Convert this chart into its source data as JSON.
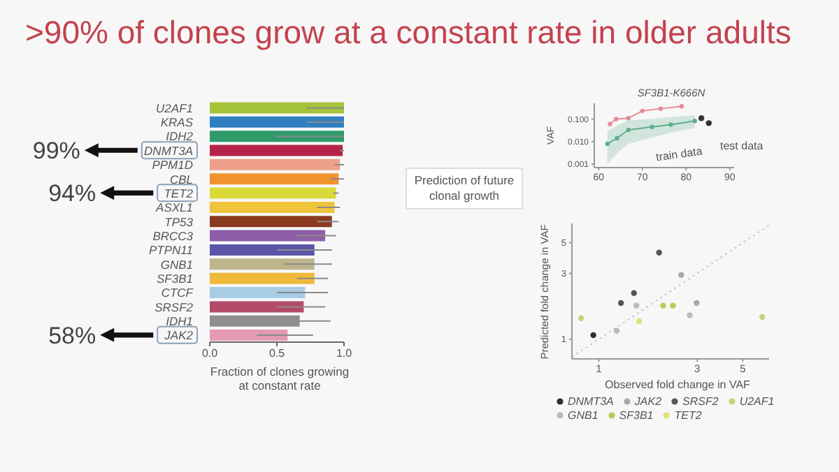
{
  "chart_data": [
    {
      "type": "bar",
      "orientation": "horizontal",
      "title": ">90% of clones grow at a constant rate in older adults",
      "xlabel": "Fraction of clones growing at constant rate",
      "categories": [
        "U2AF1",
        "KRAS",
        "IDH2",
        "DNMT3A",
        "PPM1D",
        "CBL",
        "TET2",
        "ASXL1",
        "TP53",
        "BRCC3",
        "PTPN11",
        "GNB1",
        "SF3B1",
        "CTCF",
        "SRSF2",
        "IDH1",
        "JAK2"
      ],
      "values": [
        1.0,
        1.0,
        1.0,
        0.99,
        0.97,
        0.96,
        0.94,
        0.93,
        0.91,
        0.86,
        0.78,
        0.78,
        0.78,
        0.71,
        0.7,
        0.67,
        0.58
      ],
      "colors": [
        "#a5c43a",
        "#2f7fc1",
        "#2e9a6a",
        "#b5234a",
        "#eea08a",
        "#f0922e",
        "#d9d93a",
        "#f0c43a",
        "#8b3a1e",
        "#8e5ea8",
        "#5b55a8",
        "#bdb58c",
        "#efb93a",
        "#a8cbe6",
        "#b44a6a",
        "#8e8e8e",
        "#e49ab0"
      ],
      "errors": [
        [
          0.72,
          1.0
        ],
        [
          0.72,
          1.0
        ],
        [
          0.49,
          1.0
        ],
        [
          0.97,
          1.0
        ],
        [
          0.93,
          1.0
        ],
        [
          0.9,
          1.0
        ],
        [
          0.92,
          0.96
        ],
        [
          0.8,
          0.97
        ],
        [
          0.8,
          0.96
        ],
        [
          0.65,
          0.94
        ],
        [
          0.5,
          0.91
        ],
        [
          0.55,
          0.91
        ],
        [
          0.65,
          0.88
        ],
        [
          0.5,
          0.88
        ],
        [
          0.5,
          0.86
        ],
        [
          0.67,
          0.9
        ],
        [
          0.35,
          0.77
        ]
      ],
      "xlim": [
        0,
        1
      ],
      "xticks": [
        {
          "value": 0,
          "label": "0.0"
        },
        {
          "value": 0.5,
          "label": "0.5"
        },
        {
          "value": 1,
          "label": "1.0"
        }
      ],
      "annotations": [
        "99%",
        "94%",
        "58%"
      ]
    },
    {
      "type": "line",
      "title": "SF3B1-K666N",
      "ylabel": "VAF",
      "log": "y",
      "marker": "circle",
      "xlim": [
        59,
        91
      ],
      "xticks": [
        60,
        70,
        80,
        90
      ],
      "ylim": [
        0.0007,
        0.5
      ],
      "yticks": [
        {
          "value": 0.001,
          "label": "0.001"
        },
        {
          "value": 0.01,
          "label": "0.010"
        },
        {
          "value": 0.1,
          "label": "0.100"
        }
      ],
      "series": [
        {
          "color": "#e58a9a",
          "x": [
            62.6,
            64,
            66.8,
            70,
            74.2,
            79
          ],
          "values": [
            0.06,
            0.1,
            0.11,
            0.23,
            0.29,
            0.37
          ]
        },
        {
          "color": "#5fae8e",
          "x": [
            62,
            64.2,
            66.8,
            72.2,
            76.5,
            82
          ],
          "values": [
            0.008,
            0.014,
            0.033,
            0.045,
            0.057,
            0.082
          ],
          "lower": [
            0.001,
            0.003,
            0.008,
            0.015,
            0.025,
            0.04
          ],
          "upper": [
            0.03,
            0.05,
            0.09,
            0.1,
            0.12,
            0.15
          ]
        },
        {
          "type": "scatter",
          "color": "#333333",
          "x": [
            83.5,
            85.2
          ],
          "values": [
            0.11,
            0.066
          ]
        }
      ],
      "annotations": [
        "train data",
        "test data"
      ]
    },
    {
      "type": "scatter",
      "xlabel": "Observed fold change in VAF",
      "ylabel": "Predicted fold change in VAF",
      "log": "xy",
      "marker": "circle",
      "legend": "bottom",
      "xlim": [
        0.74,
        6.7
      ],
      "xticks": [
        1,
        3,
        5
      ],
      "ylim": [
        0.72,
        6.9
      ],
      "yticks": [
        1,
        3,
        5
      ],
      "series": [
        {
          "name": "DNMT3A",
          "color": "#3a2a2a",
          "x": [
            0.94
          ],
          "values": [
            1.07
          ]
        },
        {
          "name": "JAK2",
          "color": "#a9a9a9",
          "x": [
            2.51,
            2.98
          ],
          "values": [
            2.92,
            1.83
          ]
        },
        {
          "name": "SRSF2",
          "color": "#555555",
          "x": [
            1.28,
            1.48,
            1.96
          ],
          "values": [
            1.83,
            2.16,
            4.24
          ]
        },
        {
          "name": "U2AF1",
          "color": "#c8d27a",
          "x": [
            0.82,
            6.2
          ],
          "values": [
            1.42,
            1.45
          ]
        },
        {
          "name": "GNB1",
          "color": "#bbbbbb",
          "x": [
            1.22,
            1.52,
            2.76
          ],
          "values": [
            1.15,
            1.75,
            1.49
          ]
        },
        {
          "name": "SF3B1",
          "color": "#b9cc55",
          "x": [
            2.05,
            2.29
          ],
          "values": [
            1.75,
            1.75
          ]
        },
        {
          "name": "TET2",
          "color": "#e3e07a",
          "x": [
            1.57
          ],
          "values": [
            1.35
          ]
        },
        {
          "type": "line",
          "color": "#c8c8c8",
          "line_style": "dotted",
          "marker": "none",
          "x": [
            0.74,
            6.7
          ],
          "values": [
            0.74,
            6.7
          ]
        }
      ],
      "annotations": [
        "Prediction of future clonal growth"
      ]
    }
  ]
}
